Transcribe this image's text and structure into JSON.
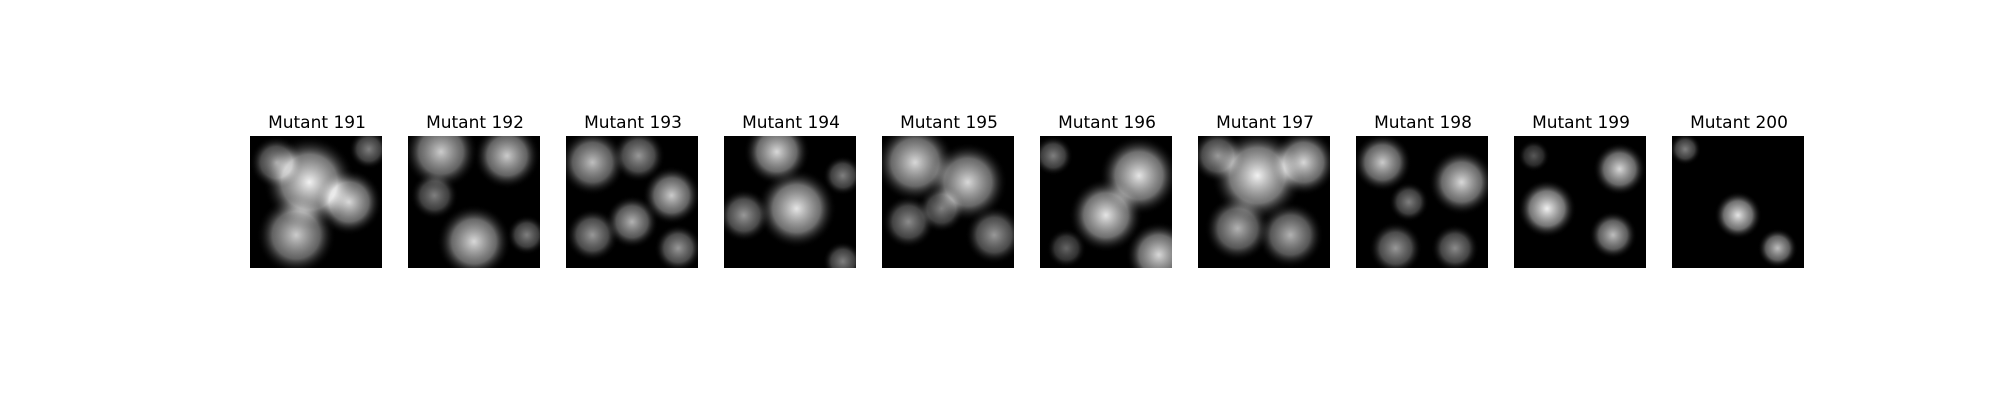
{
  "figure": {
    "panels": [
      {
        "title": "Mutant 191",
        "blobs": [
          [
            0.45,
            0.35,
            0.35,
            0.95
          ],
          [
            0.75,
            0.5,
            0.25,
            0.85
          ],
          [
            0.35,
            0.75,
            0.3,
            0.8
          ],
          [
            0.2,
            0.2,
            0.2,
            0.6
          ],
          [
            0.9,
            0.1,
            0.15,
            0.5
          ]
        ]
      },
      {
        "title": "Mutant 192",
        "blobs": [
          [
            0.25,
            0.12,
            0.28,
            0.8
          ],
          [
            0.75,
            0.15,
            0.25,
            0.8
          ],
          [
            0.2,
            0.45,
            0.18,
            0.5
          ],
          [
            0.5,
            0.8,
            0.28,
            0.85
          ],
          [
            0.9,
            0.75,
            0.15,
            0.5
          ]
        ]
      },
      {
        "title": "Mutant 193",
        "blobs": [
          [
            0.2,
            0.2,
            0.25,
            0.75
          ],
          [
            0.55,
            0.15,
            0.2,
            0.6
          ],
          [
            0.8,
            0.45,
            0.22,
            0.8
          ],
          [
            0.5,
            0.65,
            0.2,
            0.7
          ],
          [
            0.2,
            0.75,
            0.2,
            0.6
          ],
          [
            0.85,
            0.85,
            0.18,
            0.6
          ]
        ]
      },
      {
        "title": "Mutant 194",
        "blobs": [
          [
            0.4,
            0.12,
            0.25,
            0.85
          ],
          [
            0.55,
            0.55,
            0.3,
            0.9
          ],
          [
            0.15,
            0.6,
            0.2,
            0.6
          ],
          [
            0.9,
            0.3,
            0.15,
            0.5
          ],
          [
            0.9,
            0.95,
            0.15,
            0.5
          ]
        ]
      },
      {
        "title": "Mutant 195",
        "blobs": [
          [
            0.25,
            0.2,
            0.3,
            0.85
          ],
          [
            0.65,
            0.35,
            0.3,
            0.85
          ],
          [
            0.2,
            0.65,
            0.2,
            0.55
          ],
          [
            0.85,
            0.75,
            0.22,
            0.6
          ],
          [
            0.45,
            0.55,
            0.18,
            0.5
          ]
        ]
      },
      {
        "title": "Mutant 196",
        "blobs": [
          [
            0.75,
            0.3,
            0.3,
            0.9
          ],
          [
            0.5,
            0.6,
            0.28,
            0.9
          ],
          [
            0.9,
            0.9,
            0.25,
            0.85
          ],
          [
            0.1,
            0.15,
            0.15,
            0.5
          ],
          [
            0.2,
            0.85,
            0.15,
            0.4
          ]
        ]
      },
      {
        "title": "Mutant 197",
        "blobs": [
          [
            0.45,
            0.3,
            0.35,
            0.95
          ],
          [
            0.8,
            0.2,
            0.25,
            0.85
          ],
          [
            0.3,
            0.7,
            0.25,
            0.7
          ],
          [
            0.7,
            0.75,
            0.25,
            0.7
          ],
          [
            0.15,
            0.15,
            0.2,
            0.6
          ]
        ]
      },
      {
        "title": "Mutant 198",
        "blobs": [
          [
            0.2,
            0.2,
            0.22,
            0.8
          ],
          [
            0.8,
            0.35,
            0.25,
            0.85
          ],
          [
            0.4,
            0.5,
            0.15,
            0.5
          ],
          [
            0.3,
            0.85,
            0.2,
            0.6
          ],
          [
            0.75,
            0.85,
            0.18,
            0.55
          ]
        ]
      },
      {
        "title": "Mutant 199",
        "blobs": [
          [
            0.25,
            0.55,
            0.22,
            0.95
          ],
          [
            0.8,
            0.25,
            0.2,
            0.85
          ],
          [
            0.75,
            0.75,
            0.18,
            0.75
          ],
          [
            0.15,
            0.15,
            0.12,
            0.35
          ]
        ]
      },
      {
        "title": "Mutant 200",
        "blobs": [
          [
            0.5,
            0.6,
            0.18,
            0.9
          ],
          [
            0.8,
            0.85,
            0.15,
            0.75
          ],
          [
            0.1,
            0.1,
            0.12,
            0.5
          ]
        ]
      }
    ]
  }
}
